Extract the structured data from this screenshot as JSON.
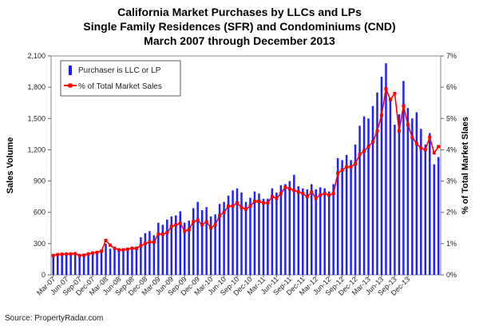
{
  "chart_data": {
    "type": "bar-line",
    "title": [
      "California Market Purchases by LLCs and LPs",
      "Single Family Residences (SFR) and Condominiums (CND)",
      "March 2007 through December 2013"
    ],
    "ylabel_left": "Sales Volume",
    "ylabel_right": "% of Total Market Slaes",
    "source": "Source: PropertyRadar.com",
    "y_left_range": [
      0,
      2100
    ],
    "y_left_ticks": [
      "0",
      "300",
      "600",
      "900",
      "1,200",
      "1,500",
      "1,800",
      "2,100"
    ],
    "y_right_range": [
      0,
      7
    ],
    "y_right_ticks": [
      "0%",
      "1%",
      "2%",
      "3%",
      "4%",
      "5%",
      "6%",
      "7%"
    ],
    "x_tick_labels": [
      "Mar-07",
      "Jun-07",
      "Sep-07",
      "Dec-07",
      "Mar-08",
      "Jun-08",
      "Sep-08",
      "Dec-08",
      "Mar-09",
      "Jun-09",
      "Sep-09",
      "Dec-09",
      "Mar-10",
      "Jun-10",
      "Sep-10",
      "Dec-10",
      "Mar-11",
      "Jun-11",
      "Sep-11",
      "Dec-11",
      "Mar-12",
      "Jun-12",
      "Sep-12",
      "Dec-12",
      "Mar-13",
      "Jun-13",
      "Sep-13",
      "Dec-13"
    ],
    "legend": [
      {
        "name": "Purchaser is LLC or LP",
        "color": "#1f1fff",
        "kind": "bar"
      },
      {
        "name": "% of Total Market Sales",
        "color": "#ff0000",
        "kind": "line"
      }
    ],
    "series": [
      {
        "name": "Purchaser is LLC or LP",
        "axis": "left",
        "values": [
          180,
          200,
          210,
          215,
          205,
          215,
          190,
          195,
          210,
          205,
          215,
          230,
          300,
          250,
          250,
          230,
          240,
          260,
          270,
          270,
          360,
          400,
          420,
          380,
          500,
          480,
          530,
          560,
          570,
          610,
          500,
          520,
          640,
          700,
          620,
          650,
          560,
          580,
          680,
          700,
          760,
          810,
          830,
          790,
          700,
          740,
          800,
          780,
          730,
          730,
          830,
          790,
          860,
          870,
          900,
          960,
          850,
          830,
          820,
          870,
          820,
          840,
          830,
          800,
          870,
          1120,
          1100,
          1150,
          1100,
          1250,
          1430,
          1520,
          1500,
          1620,
          1750,
          1900,
          2030,
          1700,
          1440,
          1540,
          1860,
          1600,
          1500,
          1560,
          1400,
          1250,
          1360,
          1060,
          1130
        ]
      },
      {
        "name": "% of Total Market Sales",
        "axis": "right",
        "values": [
          0.62,
          0.65,
          0.66,
          0.67,
          0.67,
          0.68,
          0.62,
          0.63,
          0.67,
          0.7,
          0.72,
          0.76,
          1.1,
          0.95,
          0.85,
          0.8,
          0.8,
          0.82,
          0.85,
          0.85,
          0.93,
          1.0,
          1.05,
          1.05,
          1.3,
          1.3,
          1.35,
          1.55,
          1.6,
          1.65,
          1.4,
          1.45,
          1.7,
          1.75,
          1.6,
          1.7,
          1.5,
          1.6,
          1.9,
          2.0,
          2.2,
          2.2,
          2.3,
          2.15,
          2.1,
          2.2,
          2.35,
          2.35,
          2.3,
          2.3,
          2.5,
          2.45,
          2.6,
          2.8,
          2.75,
          2.7,
          2.65,
          2.6,
          2.5,
          2.65,
          2.45,
          2.55,
          2.6,
          2.55,
          2.6,
          3.25,
          3.35,
          3.45,
          3.45,
          3.55,
          3.85,
          3.95,
          4.1,
          4.25,
          4.6,
          5.1,
          5.95,
          5.6,
          5.8,
          4.6,
          5.4,
          4.8,
          4.4,
          4.2,
          4.05,
          4.0,
          4.4,
          3.9,
          4.1
        ]
      }
    ],
    "grid": false,
    "legend_position": "top-left"
  }
}
